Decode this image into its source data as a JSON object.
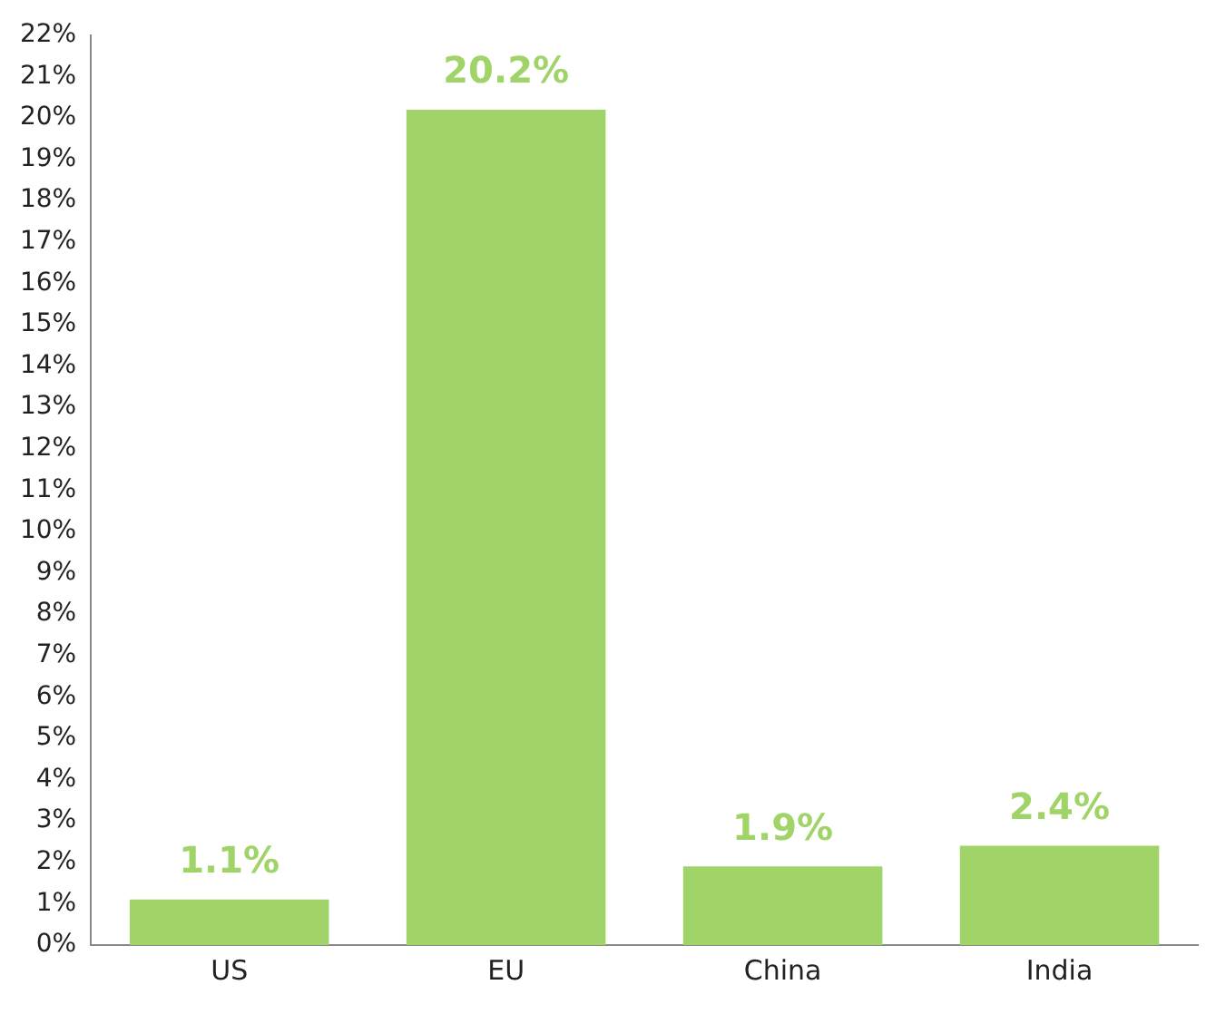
{
  "chart_data": {
    "type": "bar",
    "categories": [
      "US",
      "EU",
      "China",
      "India"
    ],
    "values": [
      1.1,
      20.2,
      1.9,
      2.4
    ],
    "value_labels": [
      "1.1%",
      "20.2%",
      "1.9%",
      "2.4%"
    ],
    "color": "#a0d468",
    "ylim": [
      0,
      22
    ],
    "yticks": [
      {
        "value": 0,
        "label": "0%"
      },
      {
        "value": 1,
        "label": "1%"
      },
      {
        "value": 2,
        "label": "2%"
      },
      {
        "value": 3,
        "label": "3%"
      },
      {
        "value": 4,
        "label": "4%"
      },
      {
        "value": 5,
        "label": "5%"
      },
      {
        "value": 6,
        "label": "6%"
      },
      {
        "value": 7,
        "label": "7%"
      },
      {
        "value": 8,
        "label": "8%"
      },
      {
        "value": 9,
        "label": "9%"
      },
      {
        "value": 10,
        "label": "10%"
      },
      {
        "value": 11,
        "label": "11%"
      },
      {
        "value": 12,
        "label": "12%"
      },
      {
        "value": 13,
        "label": "13%"
      },
      {
        "value": 14,
        "label": "14%"
      },
      {
        "value": 15,
        "label": "15%"
      },
      {
        "value": 16,
        "label": "16%"
      },
      {
        "value": 17,
        "label": "17%"
      },
      {
        "value": 18,
        "label": "18%"
      },
      {
        "value": 19,
        "label": "19%"
      },
      {
        "value": 20,
        "label": "20%"
      },
      {
        "value": 21,
        "label": "21%"
      },
      {
        "value": 22,
        "label": "22%"
      }
    ],
    "grid": false,
    "legend": false
  }
}
